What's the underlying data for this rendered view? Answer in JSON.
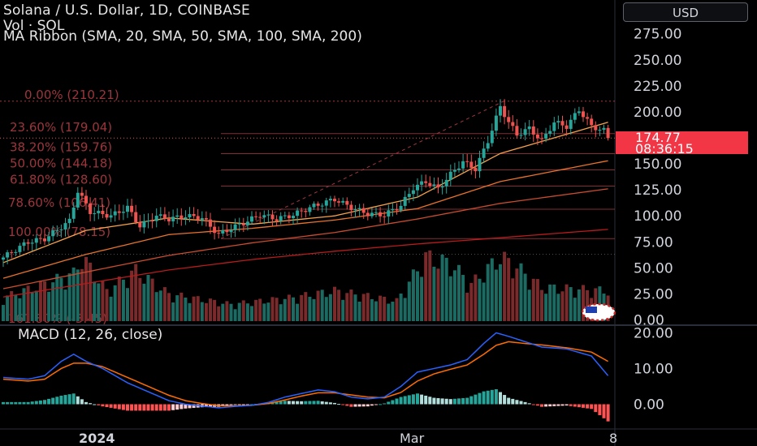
{
  "header": {
    "title": "Solana / U.S. Dollar, 1D, COINBASE",
    "vol_label": "Vol · SOL",
    "ribbon_label": "MA Ribbon (SMA, 20, SMA, 50, SMA, 100, SMA, 200)"
  },
  "currency_button": "USD",
  "last_price": {
    "value": "174.77",
    "countdown": "08:36:15"
  },
  "macd_label": "MACD (12, 26, close)",
  "colors": {
    "up": "#26a69a",
    "down": "#ef5350",
    "up_vol": "#1b6b63",
    "down_vol": "#7a2a2a",
    "fib": "#a3383f",
    "ma20": "#f7a24b",
    "ma50": "#e8722b",
    "ma100": "#c94c2e",
    "ma200": "#b71c1c",
    "macd_line": "#2962ff",
    "signal_line": "#ff6d00",
    "price_tag": "#f23645"
  },
  "chart_data": [
    {
      "type": "candlestick",
      "title": "Solana / U.S. Dollar, 1D, COINBASE",
      "ylim": [
        0,
        290
      ],
      "y_ticks": [
        "275.00",
        "250.00",
        "225.00",
        "200.00",
        "175.00",
        "150.00",
        "125.00",
        "100.00",
        "75.00",
        "50.00",
        "25.00",
        "0.00"
      ],
      "x_ticks": [
        "2024",
        "Mar",
        "8"
      ],
      "price_anchors": [
        {
          "day": 0,
          "close": 60
        },
        {
          "day": 6,
          "close": 75
        },
        {
          "day": 10,
          "close": 78
        },
        {
          "day": 16,
          "close": 95
        },
        {
          "day": 18,
          "close": 124
        },
        {
          "day": 21,
          "close": 104
        },
        {
          "day": 26,
          "close": 100
        },
        {
          "day": 30,
          "close": 108
        },
        {
          "day": 33,
          "close": 90
        },
        {
          "day": 37,
          "close": 100
        },
        {
          "day": 40,
          "close": 97
        },
        {
          "day": 44,
          "close": 100
        },
        {
          "day": 48,
          "close": 98
        },
        {
          "day": 52,
          "close": 82
        },
        {
          "day": 55,
          "close": 88
        },
        {
          "day": 59,
          "close": 95
        },
        {
          "day": 62,
          "close": 101
        },
        {
          "day": 66,
          "close": 97
        },
        {
          "day": 70,
          "close": 101
        },
        {
          "day": 74,
          "close": 108
        },
        {
          "day": 80,
          "close": 116
        },
        {
          "day": 84,
          "close": 108
        },
        {
          "day": 88,
          "close": 102
        },
        {
          "day": 92,
          "close": 101
        },
        {
          "day": 96,
          "close": 110
        },
        {
          "day": 99,
          "close": 127
        },
        {
          "day": 102,
          "close": 133
        },
        {
          "day": 105,
          "close": 126
        },
        {
          "day": 108,
          "close": 140
        },
        {
          "day": 111,
          "close": 152
        },
        {
          "day": 114,
          "close": 145
        },
        {
          "day": 117,
          "close": 172
        },
        {
          "day": 120,
          "close": 205
        },
        {
          "day": 122,
          "close": 190
        },
        {
          "day": 124,
          "close": 178
        },
        {
          "day": 127,
          "close": 184
        },
        {
          "day": 130,
          "close": 172
        },
        {
          "day": 133,
          "close": 190
        },
        {
          "day": 136,
          "close": 186
        },
        {
          "day": 139,
          "close": 202
        },
        {
          "day": 142,
          "close": 186
        },
        {
          "day": 145,
          "close": 182
        },
        {
          "day": 146,
          "close": 174.77
        }
      ],
      "fib_levels": [
        {
          "label": "0.00% (210.21)",
          "value": 210.21
        },
        {
          "label": "23.60% (179.04)",
          "value": 179.04
        },
        {
          "label": "38.20% (159.76)",
          "value": 159.76
        },
        {
          "label": "50.00% (144.18)",
          "value": 144.18
        },
        {
          "label": "61.80% (128.60)",
          "value": 128.6
        },
        {
          "label": "78.60% (106.41)",
          "value": 106.41
        },
        {
          "label": "100.00% (78.15)",
          "value": 78.15
        },
        {
          "label": "161.80% (-3.45)",
          "value": -3.45
        }
      ],
      "moving_averages": [
        {
          "name": "SMA 20",
          "points": [
            [
              0,
              55
            ],
            [
              20,
              86
            ],
            [
              40,
              98
            ],
            [
              60,
              92
            ],
            [
              80,
              100
            ],
            [
              100,
              118
            ],
            [
              120,
              160
            ],
            [
              146,
              190
            ]
          ]
        },
        {
          "name": "SMA 50",
          "points": [
            [
              0,
              40
            ],
            [
              20,
              63
            ],
            [
              40,
              82
            ],
            [
              60,
              88
            ],
            [
              80,
              96
            ],
            [
              100,
              107
            ],
            [
              120,
              133
            ],
            [
              146,
              153
            ]
          ]
        },
        {
          "name": "SMA 100",
          "points": [
            [
              0,
              30
            ],
            [
              20,
              46
            ],
            [
              40,
              62
            ],
            [
              60,
              74
            ],
            [
              80,
              84
            ],
            [
              100,
              97
            ],
            [
              120,
              112
            ],
            [
              146,
              126
            ]
          ]
        },
        {
          "name": "SMA 200",
          "points": [
            [
              0,
              22
            ],
            [
              20,
              35
            ],
            [
              40,
              48
            ],
            [
              60,
              58
            ],
            [
              80,
              66
            ],
            [
              100,
              73
            ],
            [
              120,
              79
            ],
            [
              146,
              87
            ]
          ]
        }
      ],
      "last_price": 174.77
    },
    {
      "type": "bar",
      "title": "Vol · SOL",
      "note": "volume histogram, relative height 0-1",
      "volume_anchors": [
        {
          "day": 0,
          "v": 0.35
        },
        {
          "day": 10,
          "v": 0.55
        },
        {
          "day": 17,
          "v": 0.7
        },
        {
          "day": 19,
          "v": 0.95
        },
        {
          "day": 25,
          "v": 0.45
        },
        {
          "day": 32,
          "v": 0.75
        },
        {
          "day": 40,
          "v": 0.4
        },
        {
          "day": 55,
          "v": 0.25
        },
        {
          "day": 70,
          "v": 0.35
        },
        {
          "day": 80,
          "v": 0.45
        },
        {
          "day": 95,
          "v": 0.3
        },
        {
          "day": 102,
          "v": 0.95
        },
        {
          "day": 108,
          "v": 0.85
        },
        {
          "day": 113,
          "v": 0.55
        },
        {
          "day": 120,
          "v": 0.95
        },
        {
          "day": 124,
          "v": 0.8
        },
        {
          "day": 130,
          "v": 0.5
        },
        {
          "day": 146,
          "v": 0.45
        }
      ]
    },
    {
      "type": "line",
      "title": "MACD (12, 26, close)",
      "ylim": [
        -6,
        22
      ],
      "y_ticks": [
        "20.00",
        "10.00",
        "0.00"
      ],
      "macd": [
        [
          0,
          7.5
        ],
        [
          6,
          7
        ],
        [
          10,
          8
        ],
        [
          14,
          12
        ],
        [
          17,
          14
        ],
        [
          20,
          12
        ],
        [
          24,
          10
        ],
        [
          30,
          6
        ],
        [
          36,
          3
        ],
        [
          40,
          1
        ],
        [
          44,
          0
        ],
        [
          48,
          -0.5
        ],
        [
          52,
          -1
        ],
        [
          56,
          -0.6
        ],
        [
          60,
          -0.3
        ],
        [
          64,
          0.5
        ],
        [
          68,
          2
        ],
        [
          72,
          3
        ],
        [
          76,
          4
        ],
        [
          80,
          3.5
        ],
        [
          84,
          2
        ],
        [
          88,
          1.5
        ],
        [
          92,
          2
        ],
        [
          96,
          5
        ],
        [
          100,
          9
        ],
        [
          104,
          10
        ],
        [
          108,
          11
        ],
        [
          112,
          12.5
        ],
        [
          116,
          17
        ],
        [
          119,
          20
        ],
        [
          122,
          19
        ],
        [
          126,
          17.5
        ],
        [
          130,
          16
        ],
        [
          136,
          15.5
        ],
        [
          142,
          13.5
        ],
        [
          146,
          8
        ]
      ],
      "signal": [
        [
          0,
          7
        ],
        [
          6,
          6.5
        ],
        [
          10,
          7
        ],
        [
          14,
          10
        ],
        [
          17,
          11.5
        ],
        [
          20,
          11.5
        ],
        [
          24,
          10.5
        ],
        [
          30,
          7.5
        ],
        [
          36,
          4.5
        ],
        [
          40,
          2.5
        ],
        [
          44,
          1
        ],
        [
          48,
          0.2
        ],
        [
          52,
          -0.4
        ],
        [
          56,
          -0.5
        ],
        [
          60,
          -0.3
        ],
        [
          64,
          0.2
        ],
        [
          68,
          1.2
        ],
        [
          72,
          2.3
        ],
        [
          76,
          3.2
        ],
        [
          80,
          3.2
        ],
        [
          84,
          2.6
        ],
        [
          88,
          2
        ],
        [
          92,
          1.8
        ],
        [
          96,
          3.3
        ],
        [
          100,
          6.5
        ],
        [
          104,
          8.5
        ],
        [
          108,
          9.8
        ],
        [
          112,
          11
        ],
        [
          116,
          14
        ],
        [
          119,
          16.5
        ],
        [
          122,
          17.5
        ],
        [
          126,
          17
        ],
        [
          130,
          16.6
        ],
        [
          136,
          15.8
        ],
        [
          142,
          14.6
        ],
        [
          146,
          12
        ]
      ]
    }
  ]
}
